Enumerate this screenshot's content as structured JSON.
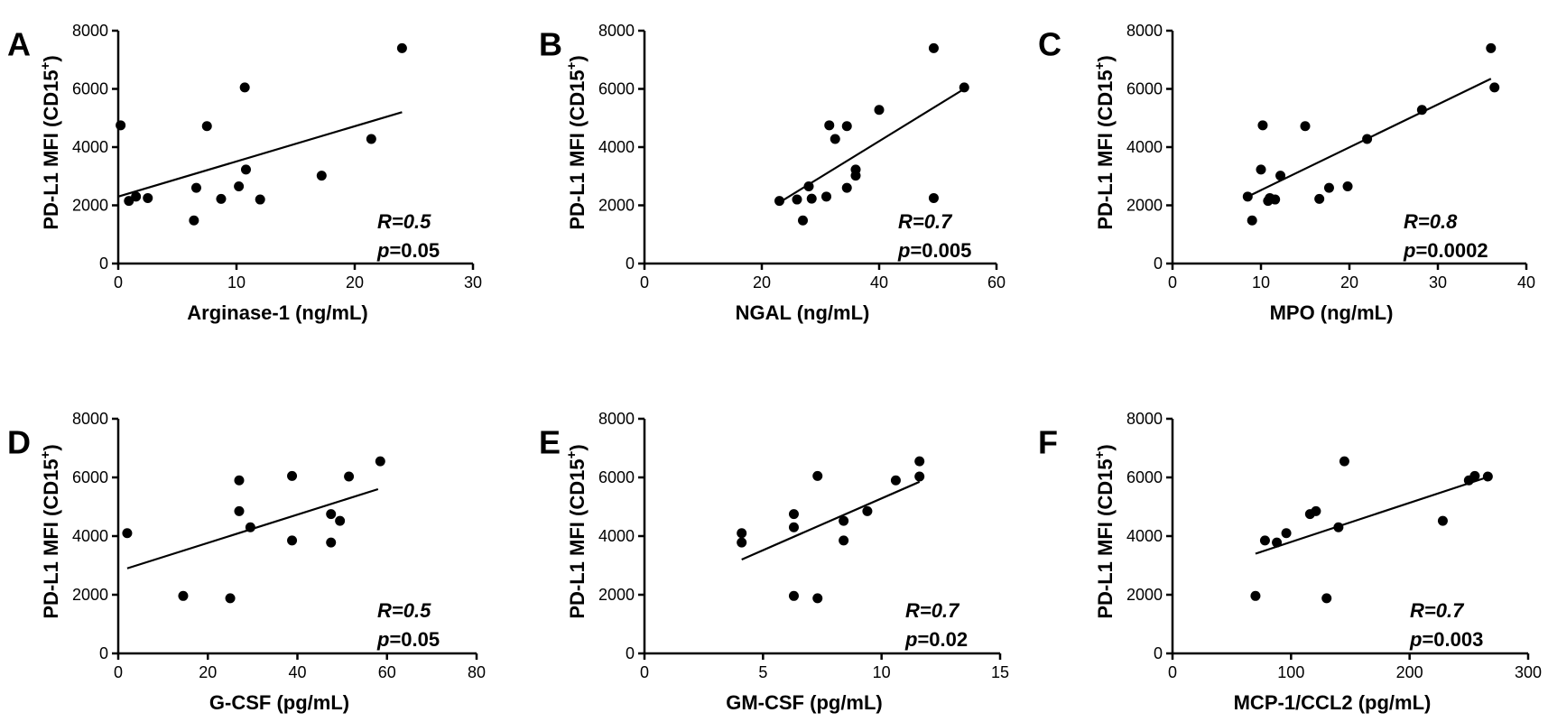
{
  "chart_data": [
    {
      "panel": "A",
      "type": "scatter",
      "xlabel": "Arginase-1 (ng/mL)",
      "ylabel_main": "PD-L1 MFI (CD15",
      "ylabel_sup": "+",
      "ylabel_end": ")",
      "xlim": [
        0,
        30
      ],
      "ylim": [
        0,
        8000
      ],
      "xticks": [
        0,
        10,
        20,
        30
      ],
      "yticks": [
        0,
        2000,
        4000,
        6000,
        8000
      ],
      "r_text": "R=0.5",
      "p_italic": "p",
      "p_value": "=0.05",
      "fit": [
        [
          0,
          2300
        ],
        [
          24,
          5200
        ]
      ],
      "points": [
        [
          0.2,
          4750
        ],
        [
          0.9,
          2150
        ],
        [
          1.5,
          2300
        ],
        [
          2.5,
          2250
        ],
        [
          6.4,
          1480
        ],
        [
          6.6,
          2600
        ],
        [
          7.5,
          4720
        ],
        [
          8.7,
          2220
        ],
        [
          10.2,
          2650
        ],
        [
          10.8,
          3230
        ],
        [
          10.7,
          6050
        ],
        [
          12,
          2200
        ],
        [
          17.2,
          3020
        ],
        [
          21.4,
          4280
        ],
        [
          24,
          7400
        ]
      ]
    },
    {
      "panel": "B",
      "type": "scatter",
      "xlabel": "NGAL (ng/mL)",
      "ylabel_main": "PD-L1 MFI (CD15",
      "ylabel_sup": "+",
      "ylabel_end": ")",
      "xlim": [
        0,
        60
      ],
      "ylim": [
        0,
        8000
      ],
      "xticks": [
        0,
        20,
        40,
        60
      ],
      "yticks": [
        0,
        2000,
        4000,
        6000,
        8000
      ],
      "r_text": "R=0.7",
      "p_italic": "p",
      "p_value": "=0.005",
      "fit": [
        [
          23,
          2100
        ],
        [
          54.5,
          6000
        ]
      ],
      "points": [
        [
          23,
          2150
        ],
        [
          26,
          2200
        ],
        [
          27,
          1480
        ],
        [
          28,
          2650
        ],
        [
          28.5,
          2230
        ],
        [
          31,
          2300
        ],
        [
          31.5,
          4750
        ],
        [
          32.5,
          4280
        ],
        [
          34.5,
          4720
        ],
        [
          34.5,
          2600
        ],
        [
          36,
          3230
        ],
        [
          36,
          3020
        ],
        [
          40,
          5280
        ],
        [
          49.3,
          2250
        ],
        [
          49.3,
          7400
        ],
        [
          54.5,
          6050
        ]
      ]
    },
    {
      "panel": "C",
      "type": "scatter",
      "xlabel": "MPO (ng/mL)",
      "ylabel_main": "PD-L1 MFI (CD15",
      "ylabel_sup": "+",
      "ylabel_end": ")",
      "xlim": [
        0,
        40
      ],
      "ylim": [
        0,
        8000
      ],
      "xticks": [
        0,
        10,
        20,
        30,
        40
      ],
      "yticks": [
        0,
        2000,
        4000,
        6000,
        8000
      ],
      "r_text": "R=0.8",
      "p_italic": "p",
      "p_value": "=0.0002",
      "fit": [
        [
          8.5,
          2300
        ],
        [
          36,
          6350
        ]
      ],
      "points": [
        [
          8.5,
          2300
        ],
        [
          9,
          1480
        ],
        [
          10,
          3230
        ],
        [
          10.2,
          4750
        ],
        [
          10.8,
          2150
        ],
        [
          11,
          2250
        ],
        [
          11.6,
          2200
        ],
        [
          12.2,
          3020
        ],
        [
          15,
          4720
        ],
        [
          16.6,
          2220
        ],
        [
          17.7,
          2600
        ],
        [
          19.8,
          2650
        ],
        [
          22,
          4280
        ],
        [
          28.2,
          5280
        ],
        [
          36,
          7400
        ],
        [
          36.4,
          6050
        ]
      ]
    },
    {
      "panel": "D",
      "type": "scatter",
      "xlabel": "G-CSF (pg/mL)",
      "ylabel_main": "PD-L1 MFI (CD15",
      "ylabel_sup": "+",
      "ylabel_end": ")",
      "xlim": [
        0,
        80
      ],
      "ylim": [
        0,
        8000
      ],
      "xticks": [
        0,
        20,
        40,
        60,
        80
      ],
      "yticks": [
        0,
        2000,
        4000,
        6000,
        8000
      ],
      "r_text": "R=0.5",
      "p_italic": "p",
      "p_value": "=0.05",
      "fit": [
        [
          2,
          2900
        ],
        [
          58,
          5600
        ]
      ],
      "points": [
        [
          2,
          4100
        ],
        [
          14.5,
          1960
        ],
        [
          25,
          1880
        ],
        [
          27,
          5900
        ],
        [
          27,
          4850
        ],
        [
          29.5,
          4300
        ],
        [
          38.8,
          6050
        ],
        [
          38.8,
          3850
        ],
        [
          47.5,
          4750
        ],
        [
          47.5,
          3780
        ],
        [
          49.5,
          4520
        ],
        [
          51.5,
          6030
        ],
        [
          58.5,
          6550
        ]
      ]
    },
    {
      "panel": "E",
      "type": "scatter",
      "xlabel": "GM-CSF (pg/mL)",
      "ylabel_main": "PD-L1 MFI (CD15",
      "ylabel_sup": "+",
      "ylabel_end": ")",
      "xlim": [
        0,
        15
      ],
      "ylim": [
        0,
        8000
      ],
      "xticks": [
        0,
        5,
        10,
        15
      ],
      "yticks": [
        0,
        2000,
        4000,
        6000,
        8000
      ],
      "r_text": "R=0.7",
      "p_italic": "p",
      "p_value": "=0.02",
      "fit": [
        [
          4.1,
          3200
        ],
        [
          11.6,
          5850
        ]
      ],
      "points": [
        [
          4.1,
          4100
        ],
        [
          4.1,
          3780
        ],
        [
          6.3,
          4750
        ],
        [
          6.3,
          4300
        ],
        [
          6.3,
          1960
        ],
        [
          7.3,
          6050
        ],
        [
          7.3,
          1880
        ],
        [
          8.4,
          4520
        ],
        [
          8.4,
          3850
        ],
        [
          9.4,
          4850
        ],
        [
          10.6,
          5900
        ],
        [
          11.6,
          6550
        ],
        [
          11.6,
          6030
        ]
      ]
    },
    {
      "panel": "F",
      "type": "scatter",
      "xlabel": "MCP-1/CCL2 (pg/mL)",
      "ylabel_main": "PD-L1 MFI (CD15",
      "ylabel_sup": "+",
      "ylabel_end": ")",
      "xlim": [
        0,
        300
      ],
      "ylim": [
        0,
        8000
      ],
      "xticks": [
        0,
        100,
        200,
        300
      ],
      "yticks": [
        0,
        2000,
        4000,
        6000,
        8000
      ],
      "r_text": "R=0.7",
      "p_italic": "p",
      "p_value": "=0.003",
      "fit": [
        [
          70,
          3400
        ],
        [
          265,
          6000
        ]
      ],
      "points": [
        [
          70,
          1960
        ],
        [
          78,
          3850
        ],
        [
          88,
          3780
        ],
        [
          96,
          4100
        ],
        [
          116,
          4750
        ],
        [
          121,
          4850
        ],
        [
          130,
          1880
        ],
        [
          140,
          4300
        ],
        [
          145,
          6550
        ],
        [
          228,
          4520
        ],
        [
          250,
          5900
        ],
        [
          255,
          6050
        ],
        [
          266,
          6030
        ]
      ]
    }
  ]
}
